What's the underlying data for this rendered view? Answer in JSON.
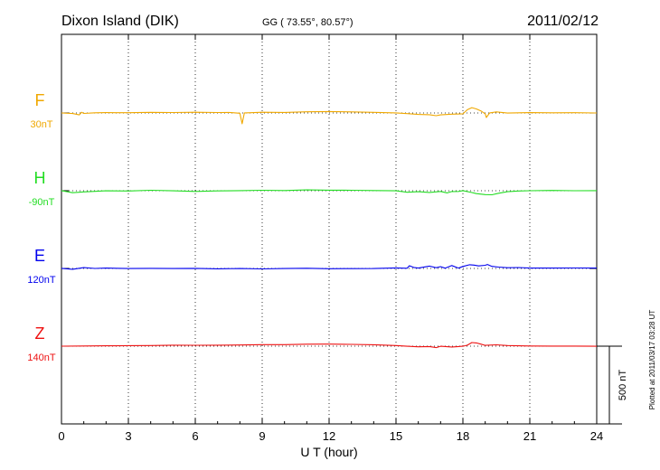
{
  "header": {
    "station": "Dixon Island (DIK)",
    "coords": "GG ( 73.55°,  80.57°)",
    "date": "2011/02/12"
  },
  "side_note": "Plotted at 2011/03/17 03:28 UT",
  "scale_label": "500 nT",
  "chart_data": {
    "type": "line",
    "title": "Dixon Island (DIK)",
    "xlabel": "U T (hour)",
    "ylabel": "",
    "xlim": [
      0,
      24
    ],
    "xticks": [
      "0",
      "3",
      "6",
      "9",
      "12",
      "15",
      "18",
      "21",
      "24"
    ],
    "grid": "dotted vertical every 3 h",
    "scale_nT": 500,
    "series": [
      {
        "name": "F",
        "offset_label": "30nT",
        "color": "#f0a800",
        "x": [
          0,
          0.5,
          0.8,
          0.9,
          1,
          1.5,
          2,
          3,
          4,
          5,
          6,
          7,
          7.5,
          8,
          8.1,
          8.2,
          8.5,
          9,
          10,
          11,
          12,
          13,
          14,
          15,
          15.5,
          16,
          16.5,
          16.8,
          17,
          17.5,
          18,
          18.2,
          18.4,
          18.6,
          18.8,
          19,
          19.05,
          19.2,
          19.5,
          20,
          21,
          22,
          23,
          24
        ],
        "y": [
          0,
          -3,
          -12,
          5,
          -3,
          0,
          2,
          1,
          4,
          3,
          5,
          3,
          3,
          -1,
          -68,
          0,
          3,
          5,
          4,
          7,
          9,
          6,
          4,
          0,
          -5,
          -9,
          -10,
          -17,
          -12,
          -8,
          -5,
          20,
          35,
          26,
          14,
          -5,
          -28,
          1,
          7,
          0,
          2,
          1,
          1,
          0
        ]
      },
      {
        "name": "H",
        "offset_label": "-90nT",
        "color": "#22dd22",
        "x": [
          0,
          0.5,
          1,
          1.5,
          2,
          3,
          4,
          5,
          6,
          7,
          8,
          9,
          10,
          11,
          12,
          13,
          14,
          15,
          15.5,
          16,
          16.5,
          17,
          17.3,
          17.5,
          17.8,
          18,
          18.4,
          18.6,
          19,
          19.3,
          19.6,
          20,
          20.5,
          21,
          22,
          23,
          24
        ],
        "y": [
          0,
          -14,
          -8,
          -4,
          -1,
          -2,
          3,
          0,
          -4,
          -1,
          1,
          3,
          1,
          5,
          3,
          3,
          1,
          0,
          -9,
          -6,
          -11,
          -4,
          -15,
          -4,
          -5,
          1,
          -12,
          -18,
          -25,
          -27,
          -16,
          -7,
          -3,
          0,
          1,
          0,
          0
        ]
      },
      {
        "name": "E",
        "offset_label": "120nT",
        "color": "#0000ee",
        "x": [
          0,
          0.5,
          1,
          1.5,
          2,
          3,
          4,
          5,
          6,
          7,
          8,
          9,
          10,
          11,
          12,
          13,
          14,
          15,
          15.5,
          15.6,
          15.8,
          16,
          16.5,
          16.8,
          17,
          17.2,
          17.5,
          17.8,
          18,
          18.3,
          18.5,
          18.7,
          19,
          19.1,
          19.3,
          19.6,
          20,
          20.5,
          21,
          22,
          23,
          24
        ],
        "y": [
          0,
          -5,
          5,
          -1,
          2,
          0,
          1,
          0,
          1,
          -2,
          -1,
          -3,
          -1,
          1,
          -2,
          -1,
          0,
          4,
          1,
          18,
          6,
          3,
          16,
          4,
          12,
          2,
          18,
          2,
          13,
          23,
          22,
          16,
          20,
          25,
          14,
          9,
          4,
          6,
          2,
          2,
          3,
          3
        ]
      },
      {
        "name": "Z",
        "offset_label": "140nT",
        "color": "#ee1111",
        "x": [
          0,
          1,
          2,
          3,
          4,
          5,
          6,
          7,
          8,
          9,
          10,
          11,
          12,
          13,
          14,
          15,
          15.5,
          16,
          16.5,
          16.8,
          17,
          17.5,
          18,
          18.2,
          18.4,
          18.6,
          18.8,
          19,
          19.5,
          20,
          21,
          22,
          23,
          24
        ],
        "y": [
          0,
          1,
          3,
          4,
          5,
          6,
          6,
          6,
          7,
          9,
          10,
          13,
          14,
          12,
          10,
          4,
          0,
          -4,
          -3,
          -9,
          -1,
          -5,
          -1,
          7,
          23,
          21,
          14,
          5,
          9,
          4,
          1,
          1,
          1,
          0
        ]
      }
    ]
  }
}
